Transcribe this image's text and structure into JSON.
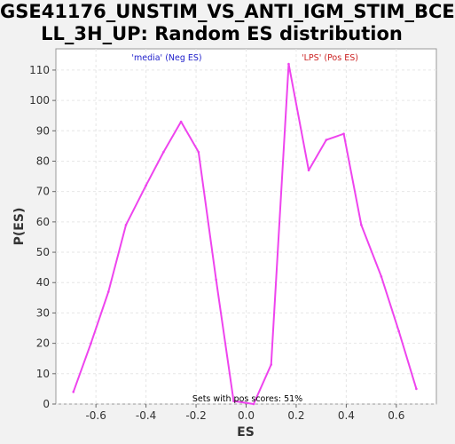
{
  "page_title": {
    "line1": "GSE41176_UNSTIM_VS_ANTI_IGM_STIM_BCE",
    "line2": "LL_3H_UP: Random ES distribution"
  },
  "chart_data": {
    "type": "line",
    "xlabel": "ES",
    "ylabel": "P(ES)",
    "xlim": [
      -0.76,
      0.76
    ],
    "ylim": [
      0,
      117
    ],
    "x_ticks": [
      -0.6,
      -0.4,
      -0.2,
      0.0,
      0.2,
      0.4,
      0.6
    ],
    "x_tick_labels": [
      "-0.6",
      "-0.4",
      "-0.2",
      "0.0",
      "0.2",
      "0.4",
      "0.6"
    ],
    "y_ticks": [
      0,
      10,
      20,
      30,
      40,
      50,
      60,
      70,
      80,
      90,
      100,
      110
    ],
    "y_tick_labels": [
      "0",
      "10",
      "20",
      "30",
      "40",
      "50",
      "60",
      "70",
      "80",
      "90",
      "100",
      "110"
    ],
    "grid": true,
    "series": [
      {
        "color": "#ee44ee",
        "x": [
          -0.69,
          -0.62,
          -0.55,
          -0.48,
          -0.4,
          -0.33,
          -0.26,
          -0.19,
          -0.12,
          -0.05,
          0.03,
          0.1,
          0.17,
          0.25,
          0.32,
          0.39,
          0.46,
          0.54,
          0.61,
          0.68
        ],
        "y": [
          4,
          20,
          37,
          59,
          72,
          83,
          93,
          83,
          41,
          1,
          0,
          13,
          112,
          77,
          87,
          89,
          59,
          42,
          24,
          5
        ]
      }
    ],
    "annotations": {
      "neg_label": "'media' (Neg ES)",
      "pos_label": "'LPS' (Pos ES)",
      "pos_scores": "Sets with pos scores: 51%"
    },
    "colors": {
      "neg_label": "#2222cc",
      "pos_label": "#cc2222",
      "line": "#ee44ee"
    }
  }
}
